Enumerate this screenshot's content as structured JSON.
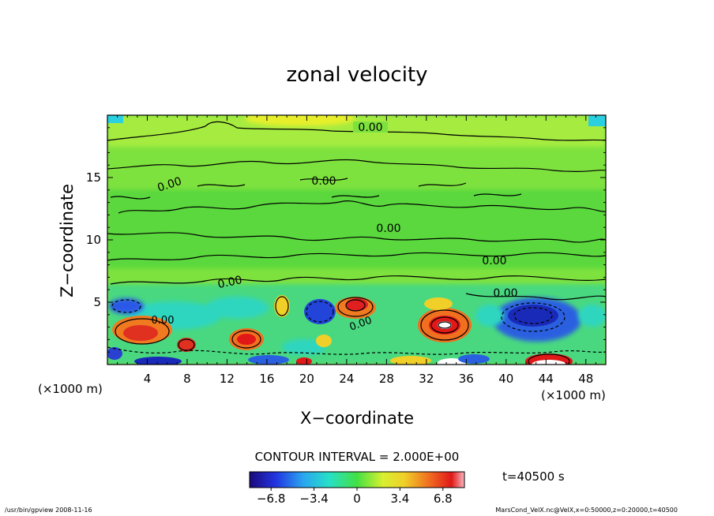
{
  "chart_data": {
    "type": "heatmap",
    "title": "zonal velocity",
    "xlabel": "X−coordinate",
    "ylabel": "Z−coordinate",
    "x_units_left": "(×1000 m)",
    "x_units_right": "(×1000 m)",
    "xlim": [
      0,
      50
    ],
    "ylim": [
      0,
      20
    ],
    "x_ticks": [
      4,
      8,
      12,
      16,
      20,
      24,
      28,
      32,
      36,
      40,
      44,
      48
    ],
    "y_ticks": [
      5,
      10,
      15
    ],
    "contour_labels": [
      "0.00",
      "0.00",
      "0.00",
      "0.00",
      "0.00",
      "0.00",
      "0.00",
      "0.00",
      "0.00"
    ],
    "contour_interval_text": "CONTOUR INTERVAL = 2.000E+00",
    "colorbar": {
      "min": -8.5,
      "max": 8.5,
      "ticks": [
        "−6.8",
        "−3.4",
        "0",
        "3.4",
        "6.8"
      ],
      "tick_values": [
        -6.8,
        -3.4,
        0,
        3.4,
        6.8
      ]
    },
    "time_label": "t=40500 s",
    "footer_left": "/usr/bin/gpview   2008-11-16",
    "footer_right": "MarsCond_VelX.nc@VelX,x=0:50000,z=0:20000,t=40500",
    "features": [
      {
        "x": 25,
        "z": 5,
        "value": 6,
        "label": "positive core"
      },
      {
        "x": 33.5,
        "z": 3,
        "value": 8,
        "label": "positive core"
      },
      {
        "x": 43,
        "z": 4,
        "value": -6,
        "label": "negative core"
      },
      {
        "x": 3.5,
        "z": 2.5,
        "value": 5,
        "label": "positive core"
      }
    ]
  }
}
